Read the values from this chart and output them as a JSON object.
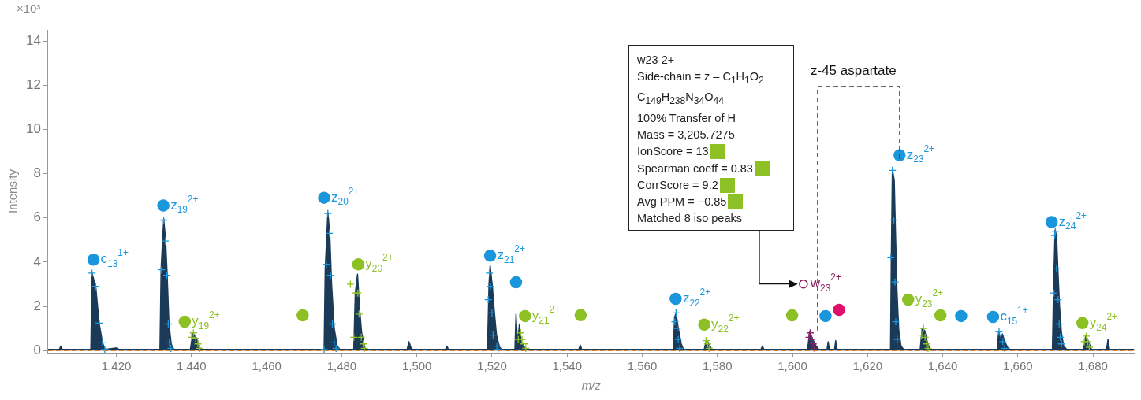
{
  "chart_data": {
    "type": "area",
    "xlabel": "m/z",
    "ylabel": "Intensity",
    "xlim": [
      1401.8,
      1691
    ],
    "ylim": [
      -0.1,
      14.5
    ],
    "xticks": [
      {
        "value": 1420,
        "label": "1,420"
      },
      {
        "value": 1440,
        "label": "1,440"
      },
      {
        "value": 1460,
        "label": "1,460"
      },
      {
        "value": 1480,
        "label": "1,480"
      },
      {
        "value": 1500,
        "label": "1,500"
      },
      {
        "value": 1520,
        "label": "1,520"
      },
      {
        "value": 1540,
        "label": "1,540"
      },
      {
        "value": 1560,
        "label": "1,560"
      },
      {
        "value": 1580,
        "label": "1,580"
      },
      {
        "value": 1600,
        "label": "1,600"
      },
      {
        "value": 1620,
        "label": "1,620"
      },
      {
        "value": 1640,
        "label": "1,640"
      },
      {
        "value": 1660,
        "label": "1,660"
      },
      {
        "value": 1680,
        "label": "1,680"
      }
    ],
    "yticks": [
      0,
      2,
      4,
      6,
      8,
      10,
      12,
      14
    ],
    "legend": false,
    "series": [
      {
        "color": "#1b3a57",
        "x": [
          1401.8,
          1404.8,
          1405.2,
          1405.6,
          1413.2,
          1413.5,
          1414.5,
          1415.4,
          1416.3,
          1417,
          1420.2,
          1420.6,
          1431.6,
          1431.9,
          1432.6,
          1433.1,
          1433.5,
          1434,
          1434.6,
          1435.2,
          1439.7,
          1440.3,
          1441.2,
          1442.3,
          1443,
          1475.3,
          1475.6,
          1476.3,
          1476.8,
          1477.3,
          1478,
          1478.8,
          1479.5,
          1483.2,
          1483.6,
          1484.2,
          1484.7,
          1485.3,
          1486.2,
          1486.8,
          1497.4,
          1497.9,
          1498.5,
          1499,
          1507.6,
          1508,
          1508.4,
          1518.8,
          1519.2,
          1519.5,
          1520.1,
          1520.6,
          1521.2,
          1522,
          1522.6,
          1526.1,
          1526.4,
          1526.8,
          1527.3,
          1527.8,
          1528.8,
          1529.4,
          1543.1,
          1543.5,
          1543.9,
          1568.3,
          1568.6,
          1569,
          1569.6,
          1570.4,
          1571,
          1576.5,
          1577.1,
          1577.8,
          1578.5,
          1591.6,
          1592,
          1592.4,
          1604,
          1604.6,
          1605.4,
          1606.3,
          1607,
          1609.2,
          1609.5,
          1609.8,
          1611.2,
          1611.5,
          1611.9,
          1626.1,
          1626.3,
          1626.6,
          1627.1,
          1627.4,
          1627.8,
          1628.3,
          1628.9,
          1629.6,
          1634,
          1634.5,
          1635.2,
          1636,
          1636.8,
          1654.5,
          1654.9,
          1655.4,
          1655.9,
          1656.5,
          1657.4,
          1658,
          1669.2,
          1669.5,
          1669.9,
          1670.3,
          1670.7,
          1671.1,
          1671.6,
          1672.2,
          1673,
          1677.5,
          1678.1,
          1678.8,
          1679.6,
          1683.6,
          1684,
          1684.4,
          1691
        ],
        "values": [
          0.05,
          0.05,
          0.2,
          0.05,
          0.05,
          3.5,
          2.9,
          1.25,
          0.35,
          0.05,
          0.12,
          0.05,
          0.05,
          3.7,
          5.95,
          5.0,
          3.5,
          1.2,
          0.3,
          0.05,
          0.05,
          0.8,
          0.6,
          0.1,
          0.05,
          0.05,
          3.7,
          6.25,
          5.3,
          3.0,
          1.0,
          0.2,
          0.05,
          0.05,
          2.6,
          3.45,
          2.0,
          0.8,
          0.1,
          0.05,
          0.05,
          0.4,
          0.1,
          0.05,
          0.05,
          0.2,
          0.05,
          0.05,
          3.0,
          3.85,
          2.9,
          1.8,
          0.7,
          0.15,
          0.05,
          0.05,
          1.65,
          0.3,
          1.2,
          0.4,
          0.1,
          0.05,
          0.05,
          0.25,
          0.05,
          0.05,
          1.5,
          1.7,
          1.0,
          0.3,
          0.05,
          0.05,
          0.5,
          0.3,
          0.05,
          0.05,
          0.2,
          0.05,
          0.05,
          0.85,
          0.5,
          0.2,
          0.05,
          0.05,
          0.4,
          0.05,
          0.05,
          0.45,
          0.05,
          0.05,
          4.0,
          8.2,
          7.7,
          5.5,
          2.8,
          0.9,
          0.2,
          0.05,
          0.05,
          1.0,
          0.9,
          0.3,
          0.05,
          0.05,
          0.85,
          0.5,
          0.75,
          0.4,
          0.1,
          0.05,
          0.05,
          2.8,
          5.45,
          5.2,
          3.5,
          2.0,
          0.8,
          0.2,
          0.05,
          0.05,
          0.7,
          0.4,
          0.05,
          0.05,
          0.5,
          0.05,
          0.05
        ]
      },
      {
        "type": "scatter",
        "marker": "cross",
        "color": "#1a96dc",
        "x": [
          1413.5,
          1414.5,
          1415.4,
          1416.3,
          1416.9,
          1432.6,
          1433.0,
          1432.0,
          1433.4,
          1433.8,
          1434.1,
          1434.5,
          1476.3,
          1476.7,
          1475.9,
          1477.0,
          1477.5,
          1478.0,
          1478.5,
          1475.3,
          1519.3,
          1519.6,
          1519.0,
          1520.0,
          1520.3,
          1521.3,
          1521.6,
          1569.0,
          1568.7,
          1569.3,
          1569.6,
          1570.0,
          1626.6,
          1627.0,
          1626.2,
          1627.3,
          1627.5,
          1627.9,
          1655.0,
          1655.5,
          1656.0,
          1656.5,
          1670.0,
          1669.8,
          1670.3,
          1669.6,
          1670.7,
          1671.0,
          1671.3,
          1671.6
        ],
        "values": [
          3.5,
          2.9,
          1.24,
          0.35,
          0.05,
          5.9,
          4.95,
          3.65,
          3.4,
          1.2,
          0.35,
          0.1,
          6.2,
          5.3,
          3.9,
          3.4,
          1.2,
          0.35,
          0.1,
          0.05,
          3.5,
          2.9,
          2.3,
          1.7,
          0.7,
          0.2,
          0.05,
          1.7,
          1.3,
          1.0,
          0.5,
          0.1,
          8.15,
          5.9,
          4.2,
          3.1,
          1.3,
          0.5,
          0.85,
          0.7,
          0.4,
          0.1,
          5.4,
          5.2,
          3.7,
          2.6,
          2.3,
          1.2,
          0.6,
          0.3
        ]
      },
      {
        "type": "scatter",
        "marker": "cross",
        "color": "#8cc024",
        "x": [
          1440.5,
          1440.0,
          1441.1,
          1441.7,
          1442.2,
          1482.3,
          1483.8,
          1484.3,
          1484.6,
          1483.2,
          1485.2,
          1485.7,
          1486.0,
          1527.6,
          1527.0,
          1528.0,
          1528.5,
          1529.0,
          1577.0,
          1577.4,
          1577.8,
          1634.9,
          1634.4,
          1635.3,
          1635.7,
          1636.1,
          1678.2,
          1677.7,
          1678.6,
          1679.0
        ],
        "values": [
          0.8,
          0.6,
          0.55,
          0.3,
          0.1,
          3.0,
          2.6,
          2.6,
          1.65,
          0.6,
          0.6,
          0.3,
          0.1,
          0.8,
          0.5,
          0.5,
          0.3,
          0.1,
          0.45,
          0.3,
          0.1,
          1.0,
          0.7,
          0.6,
          0.3,
          0.1,
          0.65,
          0.4,
          0.4,
          0.15
        ]
      },
      {
        "type": "scatter",
        "marker": "cross",
        "color": "#8c2060",
        "x": [
          1604.7,
          1604.4,
          1605.1,
          1605.5,
          1605.9
        ],
        "values": [
          0.8,
          0.6,
          0.5,
          0.3,
          0.1
        ]
      },
      {
        "type": "scatter",
        "marker": "circle",
        "color": "#1a96dc",
        "x": [
          1413.9,
          1432.5,
          1475.3,
          1519.5,
          1526.4,
          1568.9,
          1608.8,
          1628.5,
          1644.9,
          1653.4,
          1669.0
        ],
        "values": [
          4.11,
          6.56,
          6.91,
          4.29,
          3.09,
          2.34,
          1.56,
          8.83,
          1.56,
          1.52,
          5.81
        ]
      },
      {
        "type": "scatter",
        "marker": "circle",
        "color": "#8cc024",
        "x": [
          1438.2,
          1469.6,
          1484.4,
          1528.8,
          1543.6,
          1576.5,
          1599.9,
          1630.8,
          1639.4,
          1677.2
        ],
        "values": [
          1.31,
          1.59,
          3.9,
          1.56,
          1.6,
          1.17,
          1.59,
          2.3,
          1.59,
          1.24
        ]
      },
      {
        "type": "scatter",
        "marker": "circle",
        "color": "#e0106a",
        "x": [
          1612.4
        ],
        "values": [
          1.84
        ]
      },
      {
        "type": "scatter",
        "marker": "circle",
        "color": "#8c2060",
        "x": [
          1602.9
        ],
        "values": [
          3.01
        ]
      }
    ],
    "ref_lines": [
      {
        "axis": "y",
        "value": 0,
        "color": "#d9822b",
        "line_style": "dashed"
      }
    ],
    "annotations": [
      "×10³",
      {
        "text": "c$_{13}$$^{1+}$",
        "x": 1413.9,
        "y": 4.11
      },
      {
        "text": "z$_{19}$$^{2+}$",
        "x": 1432.5,
        "y": 6.56
      },
      {
        "text": "z$_{20}$$^{2+}$",
        "x": 1475.3,
        "y": 6.91
      },
      {
        "text": "z$_{21}$$^{2+}$",
        "x": 1519.5,
        "y": 4.29
      },
      {
        "text": "z$_{22}$$^{2+}$",
        "x": 1568.9,
        "y": 2.34
      },
      {
        "text": "z$_{23}$$^{2+}$",
        "x": 1628.5,
        "y": 8.83
      },
      {
        "text": "c$_{15}$$^{1+}$",
        "x": 1653.4,
        "y": 1.52
      },
      {
        "text": "z$_{24}$$^{2+}$",
        "x": 1669.0,
        "y": 5.81
      },
      {
        "text": "y$_{19}$$^{2+}$",
        "x": 1438.2,
        "y": 1.31
      },
      {
        "text": "y$_{20}$$^{2+}$",
        "x": 1484.4,
        "y": 3.9
      },
      {
        "text": "y$_{21}$$^{2+}$",
        "x": 1528.8,
        "y": 1.56
      },
      {
        "text": "y$_{22}$$^{2+}$",
        "x": 1576.5,
        "y": 1.17
      },
      {
        "text": "y$_{23}$$^{2+}$",
        "x": 1630.8,
        "y": 2.3
      },
      {
        "text": "y$_{24}$$^{2+}$",
        "x": 1677.2,
        "y": 1.24
      },
      {
        "text": "w$_{23}$$^{2+}$",
        "x": 1602.9,
        "y": 3.01
      },
      "w23 2+",
      "Side-chain = z – C$_{1}$H$_{1}$O$_{2}$",
      "C$_{149}$H$_{238}$N$_{34}$O$_{44}$",
      "100% Transfer of H",
      "Mass = 3,205.7275",
      "IonScore = 13",
      "Spearman coeff = 0.83",
      "CorrScore = 9.2",
      "Avg PPM = −0.85",
      "Matched 8 iso peaks",
      "z-45 aspartate"
    ]
  }
}
